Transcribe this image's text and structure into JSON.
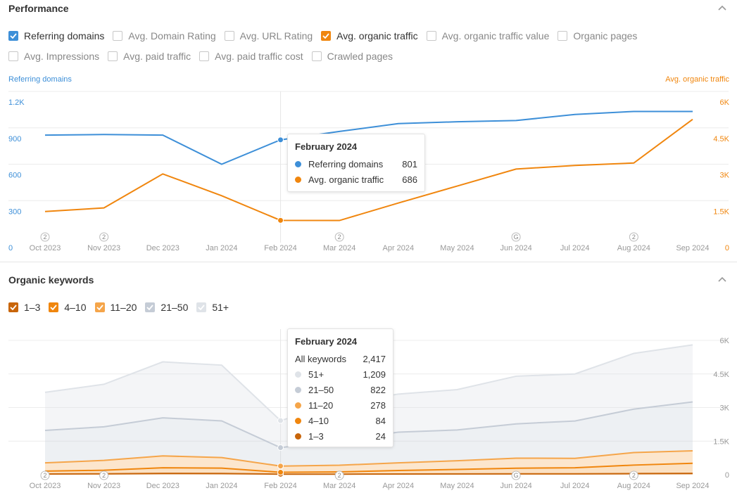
{
  "performance": {
    "title": "Performance",
    "checkboxes_row1": [
      {
        "label": "Referring domains",
        "checked": true,
        "color": "#3d8fd8"
      },
      {
        "label": "Avg. Domain Rating",
        "checked": false
      },
      {
        "label": "Avg. URL Rating",
        "checked": false
      },
      {
        "label": "Avg. organic traffic",
        "checked": true,
        "color": "#f0860e"
      },
      {
        "label": "Avg. organic traffic value",
        "checked": false
      },
      {
        "label": "Organic pages",
        "checked": false
      }
    ],
    "checkboxes_row2": [
      {
        "label": "Avg. Impressions",
        "checked": false
      },
      {
        "label": "Avg. paid traffic",
        "checked": false
      },
      {
        "label": "Avg. paid traffic cost",
        "checked": false
      },
      {
        "label": "Crawled pages",
        "checked": false
      }
    ],
    "left_axis_title": "Referring domains",
    "right_axis_title": "Avg. organic traffic",
    "tooltip": {
      "title": "February 2024",
      "rows": [
        {
          "label": "Referring domains",
          "value": "801",
          "color": "#3d8fd8"
        },
        {
          "label": "Avg. organic traffic",
          "value": "686",
          "color": "#f0860e"
        }
      ]
    }
  },
  "keywords": {
    "title": "Organic keywords",
    "checkboxes": [
      {
        "label": "1–3",
        "checked": true,
        "color": "#c8650a"
      },
      {
        "label": "4–10",
        "checked": true,
        "color": "#f0860e"
      },
      {
        "label": "11–20",
        "checked": true,
        "color": "#f5a54a"
      },
      {
        "label": "21–50",
        "checked": true,
        "color": "#c5ccd6"
      },
      {
        "label": "51+",
        "checked": true,
        "color": "#dfe3e8"
      }
    ],
    "tooltip": {
      "title": "February 2024",
      "total_label": "All keywords",
      "total_value": "2,417",
      "rows": [
        {
          "label": "51+",
          "value": "1,209",
          "color": "#dfe3e8"
        },
        {
          "label": "21–50",
          "value": "822",
          "color": "#c5ccd6"
        },
        {
          "label": "11–20",
          "value": "278",
          "color": "#f5a54a"
        },
        {
          "label": "4–10",
          "value": "84",
          "color": "#f0860e"
        },
        {
          "label": "1–3",
          "value": "24",
          "color": "#c8650a"
        }
      ]
    }
  },
  "chart_data": [
    {
      "type": "line",
      "x": [
        "Oct 2023",
        "Nov 2023",
        "Dec 2023",
        "Jan 2024",
        "Feb 2024",
        "Mar 2024",
        "Apr 2024",
        "May 2024",
        "Jun 2024",
        "Jul 2024",
        "Aug 2024",
        "Sep 2024"
      ],
      "left_ticks": [
        "0",
        "300",
        "600",
        "900",
        "1.2K"
      ],
      "right_ticks": [
        "0",
        "1.5K",
        "3K",
        "4.5K",
        "6K"
      ],
      "left_ylim": [
        0,
        1200
      ],
      "right_ylim": [
        0,
        6000
      ],
      "annotations": [
        {
          "x": "Oct 2023",
          "label": "2"
        },
        {
          "x": "Nov 2023",
          "label": "2"
        },
        {
          "x": "Mar 2024",
          "label": "2"
        },
        {
          "x": "Jun 2024",
          "label": "G"
        },
        {
          "x": "Aug 2024",
          "label": "2"
        }
      ],
      "highlight_x": "Feb 2024",
      "series": [
        {
          "name": "Referring domains",
          "axis": "left",
          "color": "#3d8fd8",
          "values": [
            840,
            845,
            840,
            600,
            801,
            870,
            935,
            950,
            960,
            1010,
            1035,
            1035
          ]
        },
        {
          "name": "Avg. organic traffic",
          "axis": "right",
          "color": "#f0860e",
          "values": [
            1050,
            1200,
            2600,
            1700,
            686,
            680,
            1400,
            2100,
            2800,
            2950,
            3050,
            4850
          ]
        }
      ]
    },
    {
      "type": "area",
      "stacked": true,
      "x": [
        "Oct 2023",
        "Nov 2023",
        "Dec 2023",
        "Jan 2024",
        "Feb 2024",
        "Mar 2024",
        "Apr 2024",
        "May 2024",
        "Jun 2024",
        "Jul 2024",
        "Aug 2024",
        "Sep 2024"
      ],
      "right_ticks": [
        "0",
        "1.5K",
        "3K",
        "4.5K",
        "6K"
      ],
      "ylim": [
        0,
        6000
      ],
      "annotations": [
        {
          "x": "Oct 2023",
          "label": "2"
        },
        {
          "x": "Nov 2023",
          "label": "2"
        },
        {
          "x": "Mar 2024",
          "label": "2"
        },
        {
          "x": "Jun 2024",
          "label": "G"
        },
        {
          "x": "Aug 2024",
          "label": "2"
        }
      ],
      "highlight_x": "Feb 2024",
      "series": [
        {
          "name": "1–3",
          "color": "#c8650a",
          "values": [
            30,
            40,
            60,
            55,
            24,
            25,
            30,
            35,
            40,
            40,
            50,
            60
          ]
        },
        {
          "name": "4–10",
          "color": "#f0860e",
          "values": [
            130,
            160,
            250,
            240,
            84,
            100,
            160,
            200,
            250,
            270,
            380,
            450
          ]
        },
        {
          "name": "11–20",
          "color": "#f5a54a",
          "values": [
            370,
            440,
            530,
            470,
            278,
            300,
            340,
            390,
            450,
            420,
            560,
            560
          ]
        },
        {
          "name": "21–50",
          "color": "#c5ccd6",
          "values": [
            1450,
            1500,
            1700,
            1640,
            822,
            1125,
            1370,
            1375,
            1530,
            1670,
            1940,
            2180
          ]
        },
        {
          "name": "51+",
          "color": "#dfe3e8",
          "values": [
            1700,
            1900,
            2500,
            2490,
            1209,
            1650,
            1700,
            1800,
            2130,
            2100,
            2490,
            2550
          ]
        }
      ]
    }
  ]
}
